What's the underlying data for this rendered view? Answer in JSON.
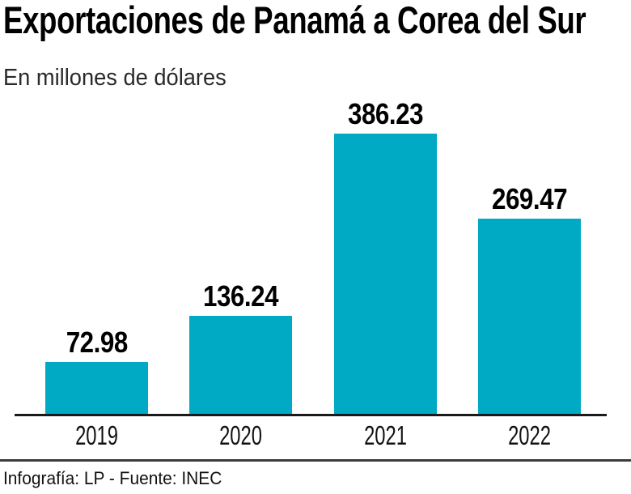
{
  "title": "Exportaciones de Panamá a Corea del Sur",
  "subtitle": "En millones de dólares",
  "footer": {
    "credit": "Infografía: LP - Fuente: INEC"
  },
  "colors": {
    "bar": "#00AAC4",
    "axis": "#1a1a1a",
    "divider": "#3c3c3c",
    "text": "#000000"
  },
  "chart_data": {
    "type": "bar",
    "title": "Exportaciones de Panamá a Corea del Sur",
    "subtitle": "En millones de dólares",
    "categories": [
      "2019",
      "2020",
      "2021",
      "2022"
    ],
    "values": [
      72.98,
      136.24,
      386.23,
      269.47
    ],
    "data_labels": [
      "72.98",
      "136.24",
      "386.23",
      "269.47"
    ],
    "ylabel": "millones de dólares",
    "ylim": [
      0,
      400
    ],
    "grid": false,
    "legend": false,
    "bar_color": "#00AAC4",
    "source": "Infografía: LP - Fuente: INEC"
  }
}
